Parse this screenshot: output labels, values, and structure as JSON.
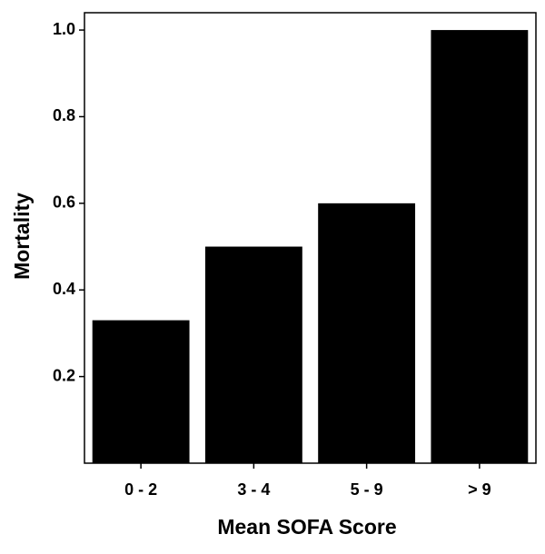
{
  "chart_data": {
    "type": "bar",
    "x_label": "Mean SOFA Score",
    "y_label": "Mortality",
    "categories": [
      "0 - 2",
      "3 - 4",
      "5 - 9",
      "> 9"
    ],
    "values": [
      0.33,
      0.5,
      0.6,
      1.0
    ],
    "color": "#000000",
    "ylim": [
      0,
      1.04
    ],
    "yticks": [
      0.2,
      0.4,
      0.6,
      0.8,
      {
        "value": 1.0,
        "label": "1.0"
      }
    ],
    "grid": false
  }
}
